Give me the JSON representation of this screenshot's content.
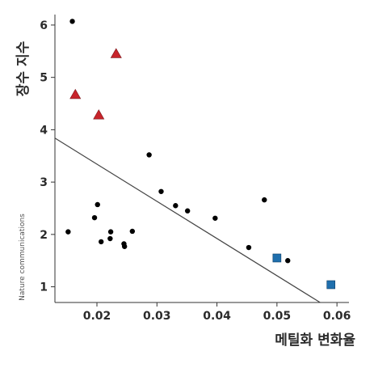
{
  "chart_data": {
    "type": "scatter",
    "xlabel": "메틸화 변화율",
    "ylabel": "장수 지수",
    "xlim": [
      0.013,
      0.062
    ],
    "ylim": [
      0.7,
      6.2
    ],
    "x_ticks": [
      0.02,
      0.03,
      0.04,
      0.05,
      0.06
    ],
    "x_tick_labels": [
      "0.02",
      "0.03",
      "0.04",
      "0.05",
      "0.06"
    ],
    "y_ticks": [
      1,
      2,
      3,
      4,
      5,
      6
    ],
    "y_tick_labels": [
      "1",
      "2",
      "3",
      "4",
      "5",
      "6"
    ],
    "grid": false,
    "credit": "Nature communications",
    "series": [
      {
        "marker": "circle",
        "color": "#000000",
        "points": [
          [
            0.0159,
            6.07
          ],
          [
            0.0152,
            2.05
          ],
          [
            0.0196,
            2.32
          ],
          [
            0.0201,
            2.57
          ],
          [
            0.0207,
            1.86
          ],
          [
            0.0222,
            1.92
          ],
          [
            0.0223,
            2.05
          ],
          [
            0.0245,
            1.82
          ],
          [
            0.0246,
            1.77
          ],
          [
            0.0259,
            2.06
          ],
          [
            0.0287,
            3.52
          ],
          [
            0.0307,
            2.82
          ],
          [
            0.0331,
            2.55
          ],
          [
            0.0351,
            2.45
          ],
          [
            0.0397,
            2.31
          ],
          [
            0.0453,
            1.75
          ],
          [
            0.0479,
            2.66
          ],
          [
            0.0518,
            1.5
          ]
        ]
      },
      {
        "marker": "triangle",
        "color": "#c8242b",
        "points": [
          [
            0.0232,
            5.45
          ],
          [
            0.0164,
            4.67
          ],
          [
            0.0203,
            4.28
          ]
        ]
      },
      {
        "marker": "square",
        "color": "#1f6fad",
        "points": [
          [
            0.05,
            1.55
          ],
          [
            0.059,
            1.04
          ]
        ]
      }
    ],
    "trendline": {
      "color": "#444444",
      "x": [
        0.013,
        0.0572
      ],
      "y": [
        3.84,
        0.7
      ]
    }
  }
}
